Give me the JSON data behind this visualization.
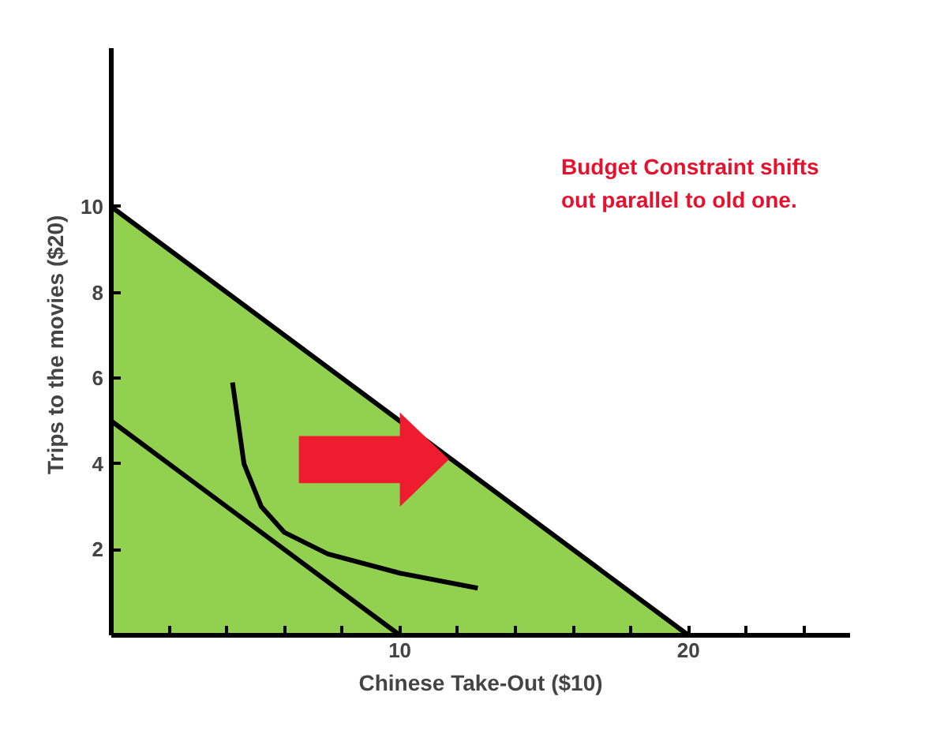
{
  "chart_data": {
    "type": "line",
    "xlabel": "Chinese Take-Out ($10)",
    "ylabel": "Trips to the movies  ($20)",
    "xlim": [
      0,
      25.6
    ],
    "ylim": [
      0,
      13.7
    ],
    "xticks": [
      {
        "value": 2,
        "label": null
      },
      {
        "value": 4,
        "label": null
      },
      {
        "value": 6,
        "label": null
      },
      {
        "value": 8,
        "label": null
      },
      10,
      {
        "value": 12,
        "label": null
      },
      {
        "value": 14,
        "label": null
      },
      {
        "value": 16,
        "label": null
      },
      {
        "value": 18,
        "label": null
      },
      20,
      {
        "value": 22,
        "label": null
      },
      {
        "value": 24,
        "label": null
      }
    ],
    "yticks": [
      2,
      4,
      6,
      8,
      10
    ],
    "grid": false,
    "marker": "none",
    "line_style": "solid",
    "series": [
      {
        "type": "area",
        "color": "#92d050",
        "x": [
          0,
          20
        ],
        "values": [
          10,
          0
        ]
      },
      {
        "color": "#000000",
        "x": [
          0,
          10
        ],
        "values": [
          5,
          0
        ]
      },
      {
        "color": "#000000",
        "x": [
          4.2,
          4.6,
          5.2,
          6,
          7.5,
          10,
          12.7
        ],
        "values": [
          5.9,
          4.0,
          3.0,
          2.4,
          1.9,
          1.45,
          1.1
        ]
      }
    ],
    "annotations": [
      "Budget Constraint shifts\nout parallel to old one."
    ]
  }
}
